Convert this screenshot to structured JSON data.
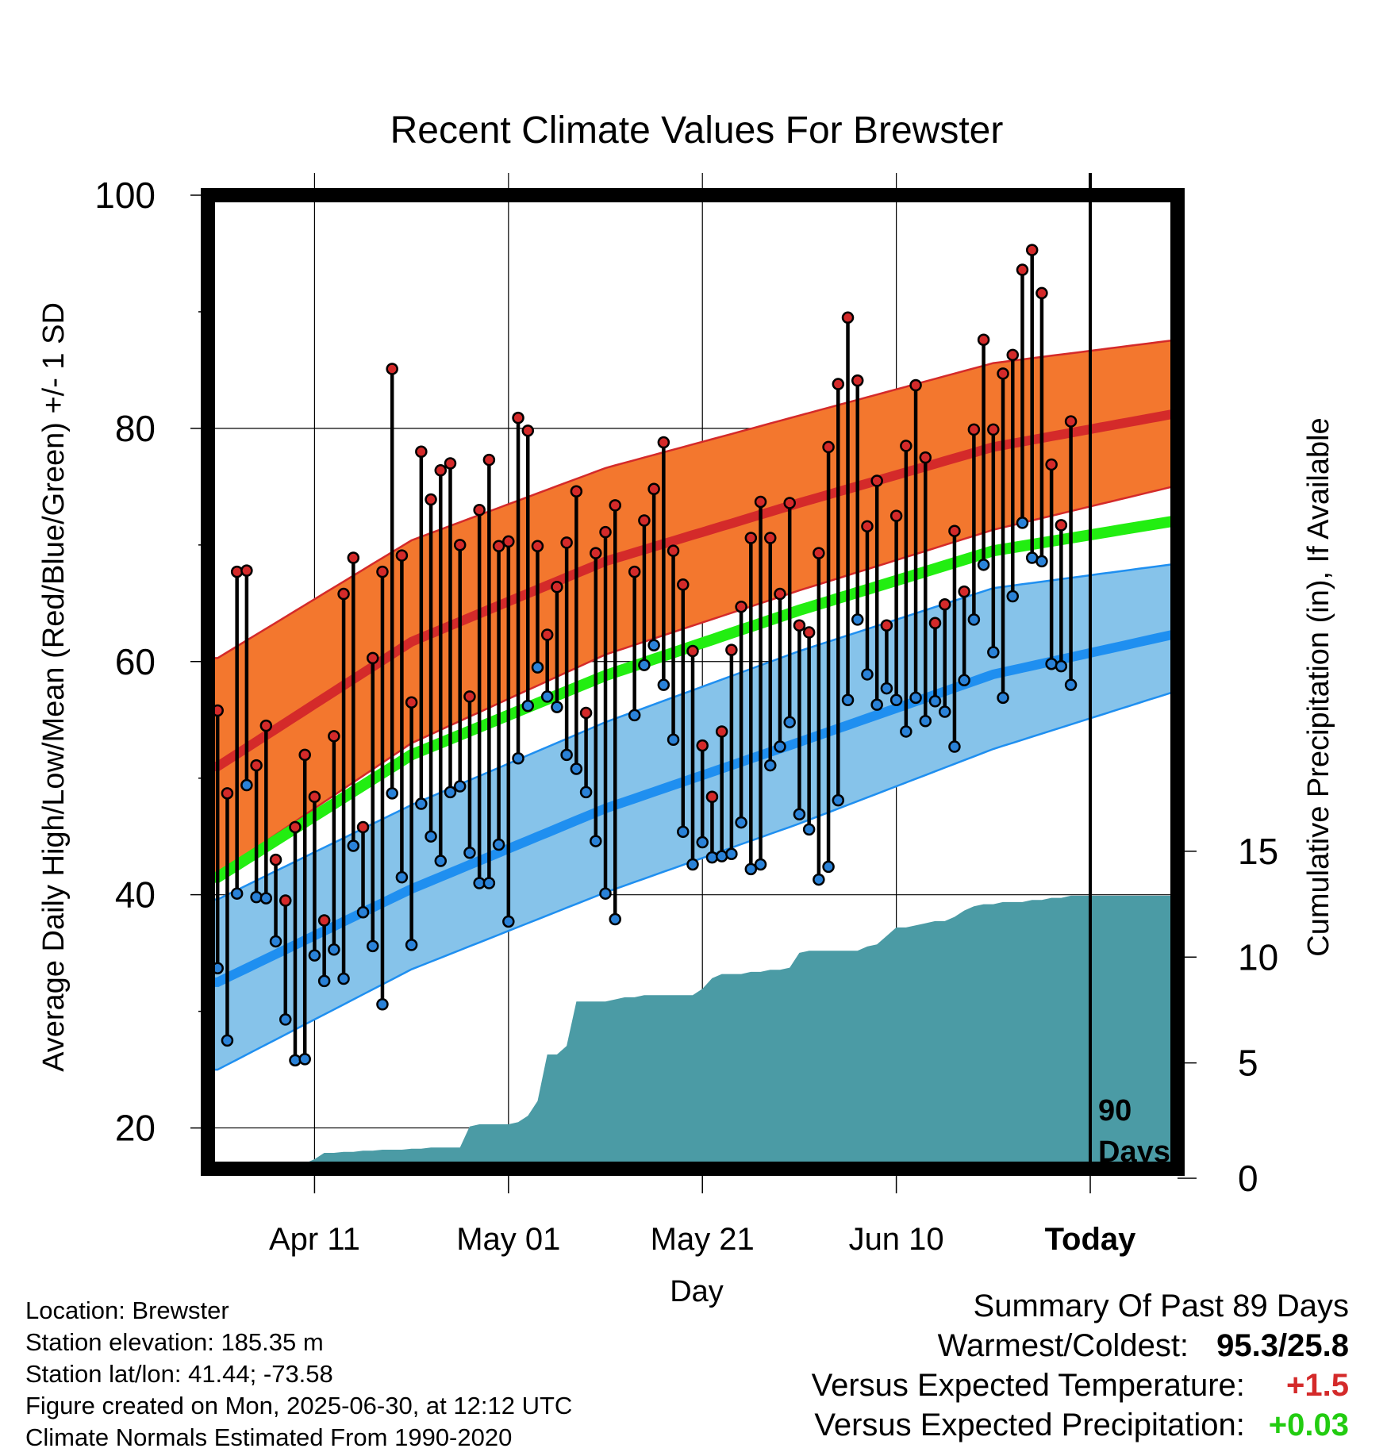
{
  "chart_data": {
    "type": "line",
    "title": "Recent Climate Values For Brewster",
    "xlabel": "Day",
    "ylabel": "Average Daily High/Low/Mean (Red/Blue/Green) +/- 1 SD",
    "y2label": "Cumulative Precipitation (in), If Available",
    "ylim": [
      16.5,
      100
    ],
    "y2lim": [
      0,
      46
    ],
    "yticks": [
      20,
      40,
      60,
      80,
      100
    ],
    "y2ticks": [
      0,
      5,
      10,
      15
    ],
    "xlim": [
      0,
      100
    ],
    "xticks": [
      {
        "day": 11,
        "label": "Apr 11"
      },
      {
        "day": 31,
        "label": "May 01"
      },
      {
        "day": 51,
        "label": "May 21"
      },
      {
        "day": 71,
        "label": "Jun 10"
      },
      {
        "day": 91,
        "label": "Today"
      }
    ],
    "today_day": 91,
    "today_label": "90\nDays",
    "grid": true,
    "colors": {
      "high_band": "#f3772e",
      "high_line": "#d42a2a",
      "mean_line": "#22ee11",
      "low_band": "#86c3ea",
      "low_line": "#1f8ff0",
      "precip": "#4b9ba5",
      "high_marker": "#d42a2a",
      "low_marker": "#2a82d8"
    },
    "normals": {
      "days": [
        1,
        21,
        41,
        61,
        81,
        100
      ],
      "high_mean": [
        51.0,
        61.7,
        68.6,
        73.6,
        78.4,
        81.3
      ],
      "high_upper": [
        60.3,
        70.4,
        76.6,
        81.1,
        85.6,
        87.6
      ],
      "high_lower": [
        41.8,
        53.0,
        60.6,
        66.1,
        71.3,
        75.1
      ],
      "mean": [
        41.5,
        52.0,
        58.8,
        64.4,
        69.5,
        72.1
      ],
      "low_mean": [
        32.5,
        40.5,
        47.4,
        53.1,
        58.9,
        62.4
      ],
      "low_upper": [
        39.6,
        47.7,
        54.8,
        60.9,
        66.3,
        68.4
      ],
      "low_lower": [
        25.0,
        33.6,
        40.2,
        46.1,
        52.5,
        57.5
      ]
    },
    "series": [
      {
        "name": "High",
        "days": [
          1,
          2,
          3,
          4,
          5,
          6,
          7,
          8,
          9,
          10,
          11,
          12,
          13,
          14,
          15,
          16,
          17,
          18,
          19,
          20,
          21,
          22,
          23,
          24,
          25,
          26,
          27,
          28,
          29,
          30,
          31,
          32,
          33,
          34,
          35,
          36,
          37,
          38,
          39,
          40,
          41,
          42,
          43,
          44,
          45,
          46,
          47,
          48,
          49,
          50,
          51,
          52,
          53,
          54,
          55,
          56,
          57,
          58,
          59,
          60,
          61,
          62,
          63,
          64,
          65,
          66,
          67,
          68,
          69,
          70,
          71,
          72,
          73,
          74,
          75,
          76,
          77,
          78,
          79,
          80,
          81,
          82,
          83,
          84,
          85,
          86,
          87,
          88,
          89
        ],
        "values": [
          55.8,
          48.7,
          67.7,
          67.8,
          51.1,
          54.5,
          43.0,
          39.5,
          45.8,
          52.0,
          48.4,
          37.8,
          53.6,
          65.8,
          68.9,
          45.8,
          60.3,
          67.7,
          85.1,
          69.1,
          56.5,
          78.0,
          73.9,
          76.4,
          77.0,
          70.0,
          57.0,
          73.0,
          77.3,
          69.9,
          70.3,
          80.9,
          79.8,
          69.9,
          62.3,
          66.4,
          70.2,
          74.6,
          55.6,
          69.3,
          71.1,
          73.4,
          null,
          67.7,
          72.1,
          74.8,
          78.8,
          69.5,
          66.6,
          60.9,
          52.8,
          48.4,
          54.0,
          61.0,
          64.7,
          70.6,
          73.7,
          70.6,
          65.8,
          73.6,
          63.1,
          62.5,
          69.3,
          78.4,
          83.8,
          89.5,
          84.1,
          71.6,
          75.5,
          63.1,
          72.5,
          78.5,
          83.7,
          77.5,
          63.3,
          64.9,
          71.2,
          66.0,
          79.9,
          87.6,
          79.9,
          84.7,
          86.3,
          93.6,
          95.3,
          91.6,
          76.9,
          71.7,
          80.6
        ]
      },
      {
        "name": "Low",
        "days": [
          1,
          2,
          3,
          4,
          5,
          6,
          7,
          8,
          9,
          10,
          11,
          12,
          13,
          14,
          15,
          16,
          17,
          18,
          19,
          20,
          21,
          22,
          23,
          24,
          25,
          26,
          27,
          28,
          29,
          30,
          31,
          32,
          33,
          34,
          35,
          36,
          37,
          38,
          39,
          40,
          41,
          42,
          43,
          44,
          45,
          46,
          47,
          48,
          49,
          50,
          51,
          52,
          53,
          54,
          55,
          56,
          57,
          58,
          59,
          60,
          61,
          62,
          63,
          64,
          65,
          66,
          67,
          68,
          69,
          70,
          71,
          72,
          73,
          74,
          75,
          76,
          77,
          78,
          79,
          80,
          81,
          82,
          83,
          84,
          85,
          86,
          87,
          88,
          89
        ],
        "values": [
          33.7,
          27.5,
          40.1,
          49.4,
          39.8,
          39.7,
          36.0,
          29.3,
          25.8,
          25.9,
          34.8,
          32.6,
          35.3,
          32.8,
          44.2,
          38.5,
          35.6,
          30.6,
          48.7,
          41.5,
          35.7,
          47.8,
          45.0,
          42.9,
          48.8,
          49.3,
          43.6,
          41.0,
          41.0,
          44.3,
          37.7,
          51.7,
          56.2,
          59.5,
          57.0,
          56.1,
          52.0,
          50.8,
          48.8,
          44.6,
          40.1,
          37.9,
          null,
          55.4,
          59.7,
          61.4,
          58.0,
          53.3,
          45.4,
          42.6,
          44.5,
          43.2,
          43.3,
          43.5,
          46.2,
          42.2,
          42.6,
          51.1,
          52.7,
          54.8,
          46.9,
          45.6,
          41.3,
          42.4,
          48.1,
          56.7,
          63.6,
          58.9,
          56.3,
          57.7,
          56.7,
          54.0,
          56.9,
          54.9,
          56.6,
          55.7,
          52.7,
          58.4,
          63.6,
          68.3,
          60.8,
          56.9,
          65.6,
          71.9,
          68.9,
          68.6,
          59.8,
          59.6,
          58.0
        ]
      },
      {
        "name": "Cumulative Precipitation",
        "days": [
          1,
          5,
          6,
          7,
          8,
          9,
          10,
          11,
          12,
          13,
          14,
          15,
          16,
          17,
          18,
          19,
          20,
          21,
          22,
          23,
          24,
          25,
          26,
          27,
          28,
          29,
          30,
          31,
          32,
          33,
          34,
          35,
          36,
          37,
          38,
          39,
          40,
          41,
          42,
          43,
          44,
          45,
          46,
          47,
          48,
          49,
          50,
          51,
          52,
          53,
          54,
          55,
          56,
          57,
          58,
          59,
          60,
          61,
          62,
          63,
          64,
          65,
          66,
          67,
          68,
          69,
          70,
          71,
          72,
          73,
          74,
          75,
          76,
          77,
          78,
          79,
          80,
          81,
          82,
          83,
          84,
          85,
          86,
          87,
          88,
          89,
          91,
          100
        ],
        "values": [
          0,
          0,
          0.05,
          0.1,
          0.15,
          0.2,
          0.25,
          0.45,
          0.75,
          0.75,
          0.8,
          0.8,
          0.85,
          0.85,
          0.9,
          0.9,
          0.9,
          0.95,
          0.95,
          1.0,
          1.0,
          1.0,
          1.0,
          2.0,
          2.1,
          2.1,
          2.1,
          2.1,
          2.2,
          2.5,
          3.2,
          5.4,
          5.4,
          5.8,
          7.9,
          7.9,
          7.9,
          7.9,
          8.0,
          8.1,
          8.1,
          8.2,
          8.2,
          8.2,
          8.2,
          8.2,
          8.2,
          8.5,
          9.0,
          9.2,
          9.2,
          9.2,
          9.3,
          9.3,
          9.4,
          9.4,
          9.5,
          10.2,
          10.3,
          10.3,
          10.3,
          10.3,
          10.3,
          10.3,
          10.5,
          10.6,
          11.0,
          11.4,
          11.4,
          11.5,
          11.6,
          11.7,
          11.7,
          11.9,
          12.2,
          12.4,
          12.5,
          12.5,
          12.6,
          12.6,
          12.6,
          12.7,
          12.7,
          12.8,
          12.8,
          12.9,
          12.9,
          12.9
        ]
      }
    ]
  },
  "info": {
    "location": "Location: Brewster",
    "elevation": "Station elevation: 185.35 m",
    "latlon": "Station lat/lon: 41.44; -73.58",
    "created": "Figure created on Mon, 2025-06-30, at 12:12 UTC",
    "normals": "Climate Normals Estimated From 1990-2020"
  },
  "summary": {
    "heading": "Summary Of Past 89 Days",
    "warm_cold_label": "Warmest/Coldest:",
    "warm_cold_value": "95.3/25.8",
    "temp_label": "Versus Expected Temperature:",
    "temp_value": "+1.5",
    "temp_color": "#d42a2a",
    "precip_label": "Versus Expected Precipitation:",
    "precip_value": "+0.03",
    "precip_color": "#22cc11"
  }
}
